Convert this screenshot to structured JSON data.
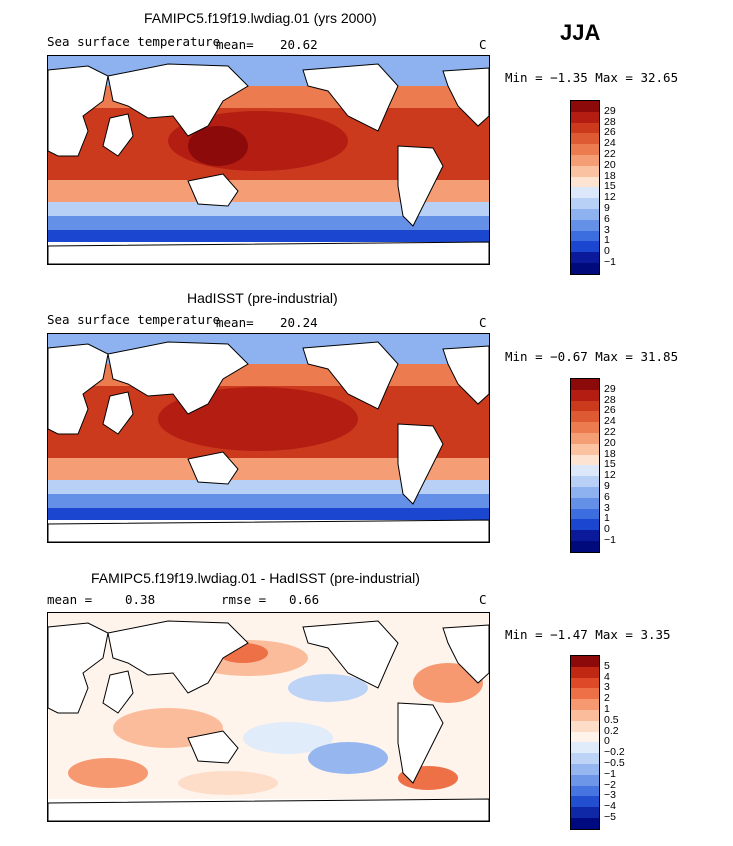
{
  "season": "JJA",
  "panels": [
    {
      "title": "FAMIPC5.f19f19.lwdiag.01 (yrs 2000)",
      "variable": "Sea surface temperature",
      "mean_label": "mean=",
      "mean_value": "20.62",
      "units": "C",
      "stats": "Min =  −1.35 Max =  32.65",
      "colorbar_labels": [
        "29",
        "28",
        "26",
        "24",
        "22",
        "20",
        "18",
        "15",
        "12",
        "9",
        "6",
        "3",
        "1",
        "0",
        "−1"
      ]
    },
    {
      "title": "HadISST (pre-industrial)",
      "variable": "Sea surface temperature",
      "mean_label": "mean=",
      "mean_value": "20.24",
      "units": "C",
      "stats": "Min =  −0.67 Max =  31.85",
      "colorbar_labels": [
        "29",
        "28",
        "26",
        "24",
        "22",
        "20",
        "18",
        "15",
        "12",
        "9",
        "6",
        "3",
        "1",
        "0",
        "−1"
      ]
    },
    {
      "title": "FAMIPC5.f19f19.lwdiag.01 - HadISST (pre-industrial)",
      "mean_label": "mean =",
      "mean_value": "0.38",
      "rmse_label": "rmse =",
      "rmse_value": "0.66",
      "units": "C",
      "stats": "Min =  −1.47 Max =   3.35",
      "colorbar_labels": [
        "5",
        "4",
        "3",
        "2",
        "1",
        "0.5",
        "0.2",
        "0",
        "−0.2",
        "−0.5",
        "−1",
        "−2",
        "−3",
        "−4",
        "−5"
      ]
    }
  ],
  "colors": {
    "abs_scale": [
      "#8c0a0a",
      "#b41e12",
      "#cc3a1e",
      "#de5a32",
      "#ec7c50",
      "#f59e76",
      "#fbc2a2",
      "#fde4d2",
      "#dce8fa",
      "#b8d0f6",
      "#8eb2f0",
      "#6490e8",
      "#3c6ee0",
      "#1a46d0",
      "#0a1a9a",
      "#000a7a"
    ],
    "diff_scale": [
      "#8c0a0a",
      "#c02814",
      "#de4a28",
      "#ee7046",
      "#f69870",
      "#fbbc9c",
      "#fdddc8",
      "#fff4ec",
      "#e0ecfa",
      "#bed4f6",
      "#96b6f0",
      "#6e96e8",
      "#4674e0",
      "#224ed0",
      "#0e28a8",
      "#000a80"
    ]
  }
}
